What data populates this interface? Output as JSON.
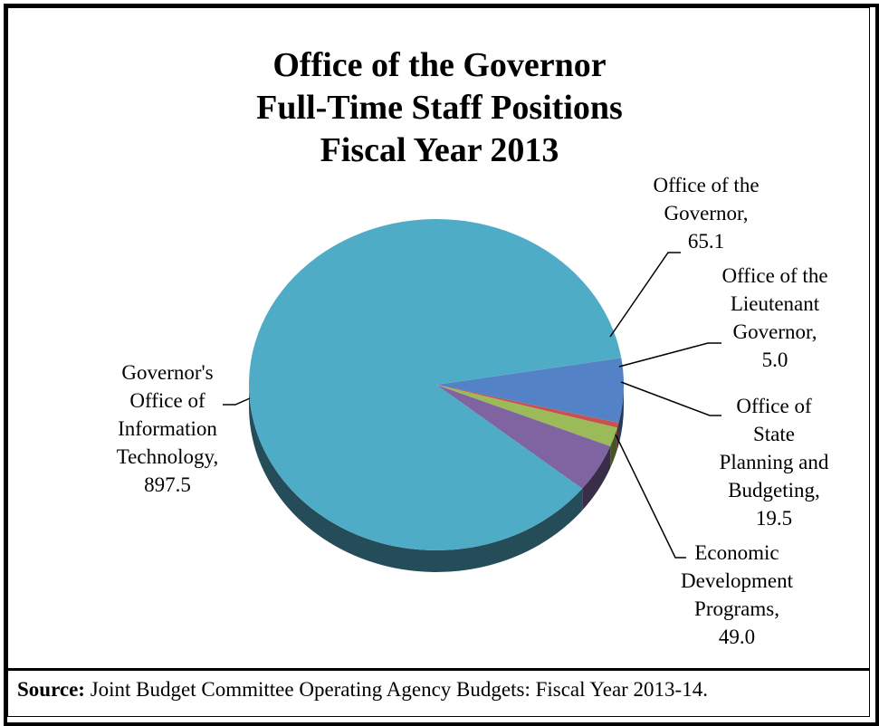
{
  "chart_data": {
    "type": "pie",
    "title_lines": [
      "Office of the Governor",
      "Full-Time Staff Positions",
      "Fiscal Year 2013"
    ],
    "slices": [
      {
        "label_lines": [
          "Office of the",
          "Governor,",
          "65.1"
        ],
        "value": 65.1,
        "color": "#5383c6"
      },
      {
        "label_lines": [
          "Office of the",
          "Lieutenant",
          "Governor,",
          "5.0"
        ],
        "value": 5.0,
        "color": "#c9504f"
      },
      {
        "label_lines": [
          "Office of",
          "State",
          "Planning and",
          "Budgeting,",
          "19.5"
        ],
        "value": 19.5,
        "color": "#9bbb59"
      },
      {
        "label_lines": [
          "Economic",
          "Development",
          "Programs,",
          "49.0"
        ],
        "value": 49.0,
        "color": "#8064a2"
      },
      {
        "label_lines": [
          "Governor's",
          "Office of",
          "Information",
          "Technology,",
          "897.5"
        ],
        "value": 897.5,
        "color": "#4facc6"
      }
    ],
    "legend": "none",
    "data_labels": "outside-with-leader-lines"
  },
  "source": {
    "prefix": "Source:",
    "text": " Joint Budget Committee Operating Agency Budgets: Fiscal Year 2013-14."
  }
}
